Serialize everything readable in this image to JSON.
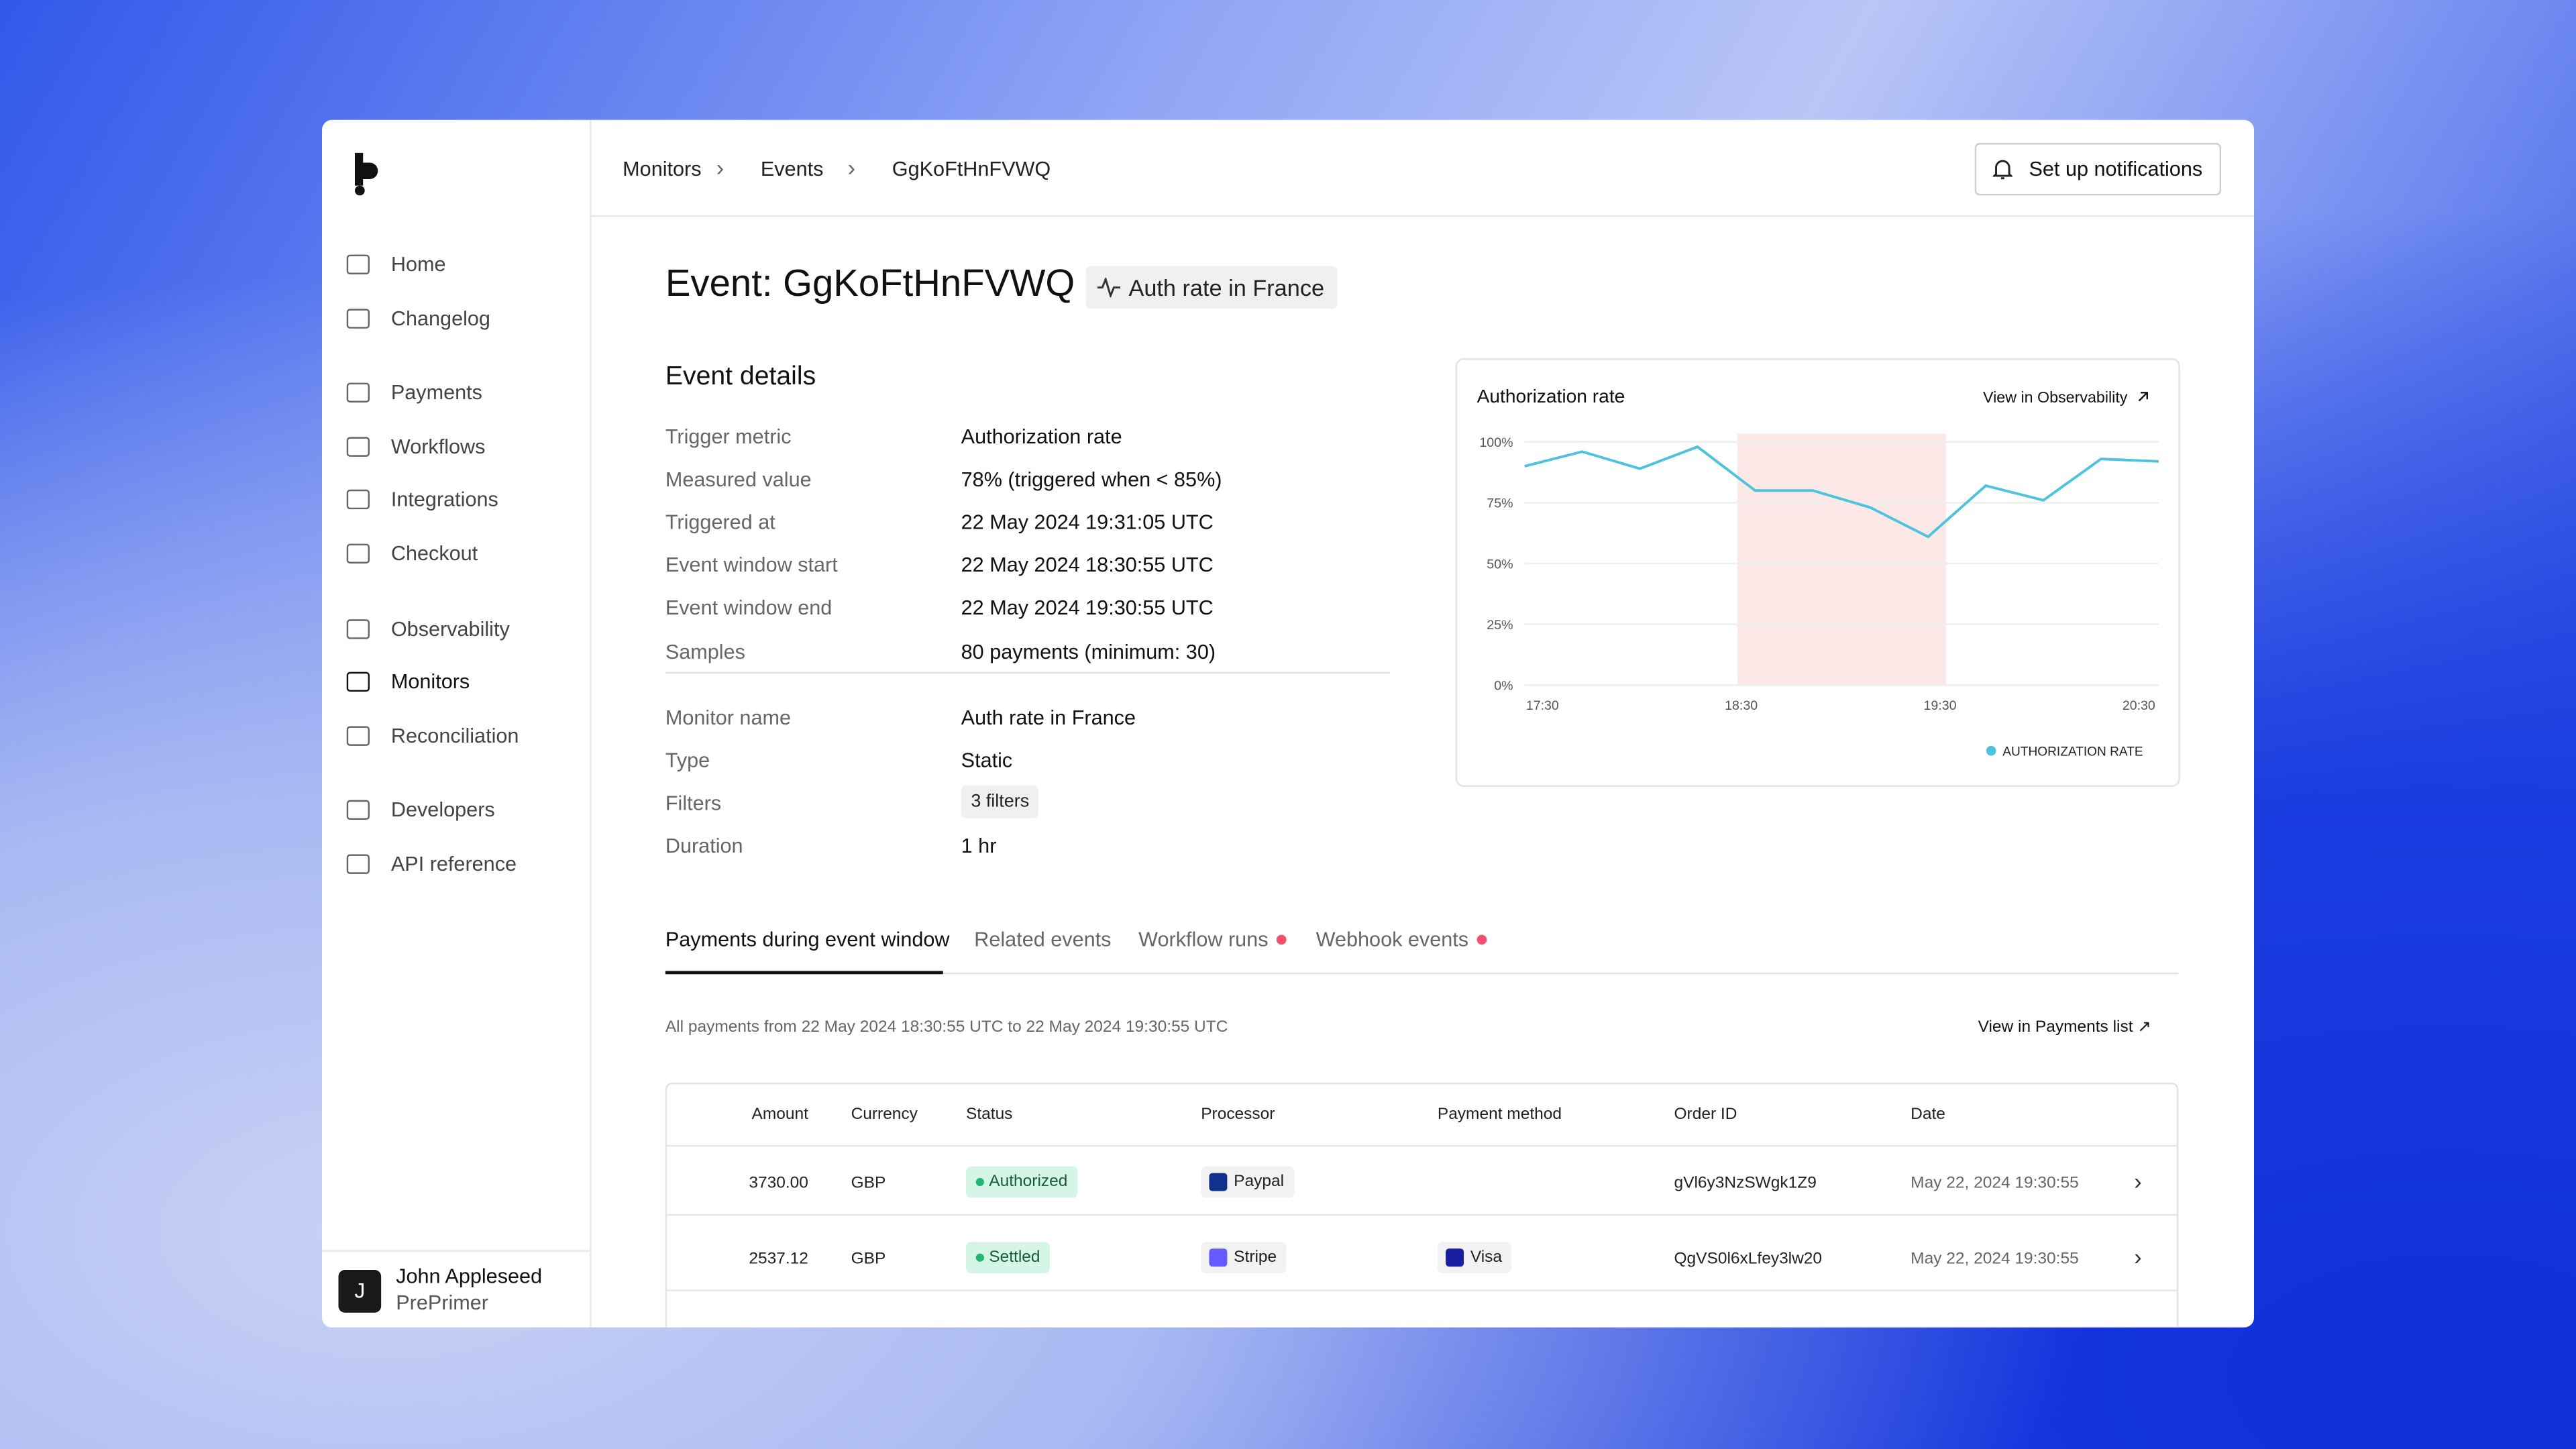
{
  "sidebar": {
    "nav": [
      [
        {
          "label": "Home"
        },
        {
          "label": "Changelog"
        }
      ],
      [
        {
          "label": "Payments"
        },
        {
          "label": "Workflows"
        },
        {
          "label": "Integrations"
        },
        {
          "label": "Checkout"
        }
      ],
      [
        {
          "label": "Observability"
        },
        {
          "label": "Monitors",
          "active": true
        },
        {
          "label": "Reconciliation"
        }
      ],
      [
        {
          "label": "Developers"
        },
        {
          "label": "API reference"
        }
      ]
    ],
    "user": {
      "initial": "J",
      "name": "John Appleseed",
      "org": "PrePrimer"
    }
  },
  "header": {
    "breadcrumb": [
      "Monitors",
      "Events",
      "GgKoFtHnFVWQ"
    ],
    "button": "Set up notifications"
  },
  "page": {
    "title": "Event: GgKoFtHnFVWQ",
    "tag": "Auth rate in France"
  },
  "details": {
    "heading": "Event details",
    "groups": [
      [
        {
          "label": "Trigger metric",
          "value": "Authorization rate"
        },
        {
          "label": "Measured value",
          "value": "78% (triggered when < 85%)"
        },
        {
          "label": "Triggered at",
          "value": "22 May 2024 19:31:05 UTC"
        },
        {
          "label": "Event window start",
          "value": "22 May 2024 18:30:55 UTC"
        },
        {
          "label": "Event window end",
          "value": "22 May 2024 19:30:55 UTC"
        },
        {
          "label": "Samples",
          "value": "80 payments (minimum: 30)"
        }
      ],
      [
        {
          "label": "Monitor name",
          "value": "Auth rate in France"
        },
        {
          "label": "Type",
          "value": "Static"
        },
        {
          "label": "Filters",
          "value": "3 filters",
          "chip": true
        },
        {
          "label": "Duration",
          "value": "1 hr"
        }
      ]
    ]
  },
  "chart_data": {
    "type": "line",
    "title": "Authorization rate",
    "link": "View in Observability",
    "x": [
      17.41,
      17.7,
      17.99,
      18.28,
      18.57,
      18.86,
      19.15,
      19.44,
      19.73,
      20.02,
      20.31,
      20.6
    ],
    "series": [
      {
        "name": "AUTHORIZATION RATE",
        "color": "#4fc3dd",
        "values": [
          90,
          96,
          89,
          98,
          80,
          80,
          73,
          61,
          82,
          76,
          93,
          92
        ]
      }
    ],
    "xlim": [
      17.41,
      20.6
    ],
    "xticks": [
      {
        "value": 17.5,
        "label": "17:30"
      },
      {
        "value": 18.5,
        "label": "18:30"
      },
      {
        "value": 19.5,
        "label": "19:30"
      },
      {
        "value": 20.5,
        "label": "20:30"
      }
    ],
    "ylim": [
      0,
      100
    ],
    "yticks": [
      {
        "value": 0,
        "label": "0%"
      },
      {
        "value": 25,
        "label": "25%"
      },
      {
        "value": 50,
        "label": "50%"
      },
      {
        "value": 75,
        "label": "75%"
      },
      {
        "value": 100,
        "label": "100%"
      }
    ],
    "highlight": [
      18.48,
      19.53
    ],
    "highlight_color": "#fde8e8",
    "grid": true,
    "legend": "bottom-right"
  },
  "tabs": [
    {
      "label": "Payments during event window",
      "active": true
    },
    {
      "label": "Related events"
    },
    {
      "label": "Workflow runs",
      "dot": true
    },
    {
      "label": "Webhook events",
      "dot": true
    }
  ],
  "payments": {
    "info": "All payments from 22 May 2024 18:30:55 UTC to 22 May 2024 19:30:55 UTC",
    "link": "View in Payments list",
    "columns": [
      "Amount",
      "Currency",
      "Status",
      "Processor",
      "Payment method",
      "Order ID",
      "Date"
    ],
    "rows": [
      [
        "3730.00",
        "GBP",
        "Authorized",
        "Paypal",
        null,
        "gVl6y3NzSWgk1Z9",
        "May 22, 2024 19:30:55"
      ],
      [
        "2537.12",
        "GBP",
        "Settled",
        "Stripe",
        "Visa",
        "QgVS0l6xLfey3lw20",
        "May 22, 2024 19:30:55"
      ]
    ]
  }
}
